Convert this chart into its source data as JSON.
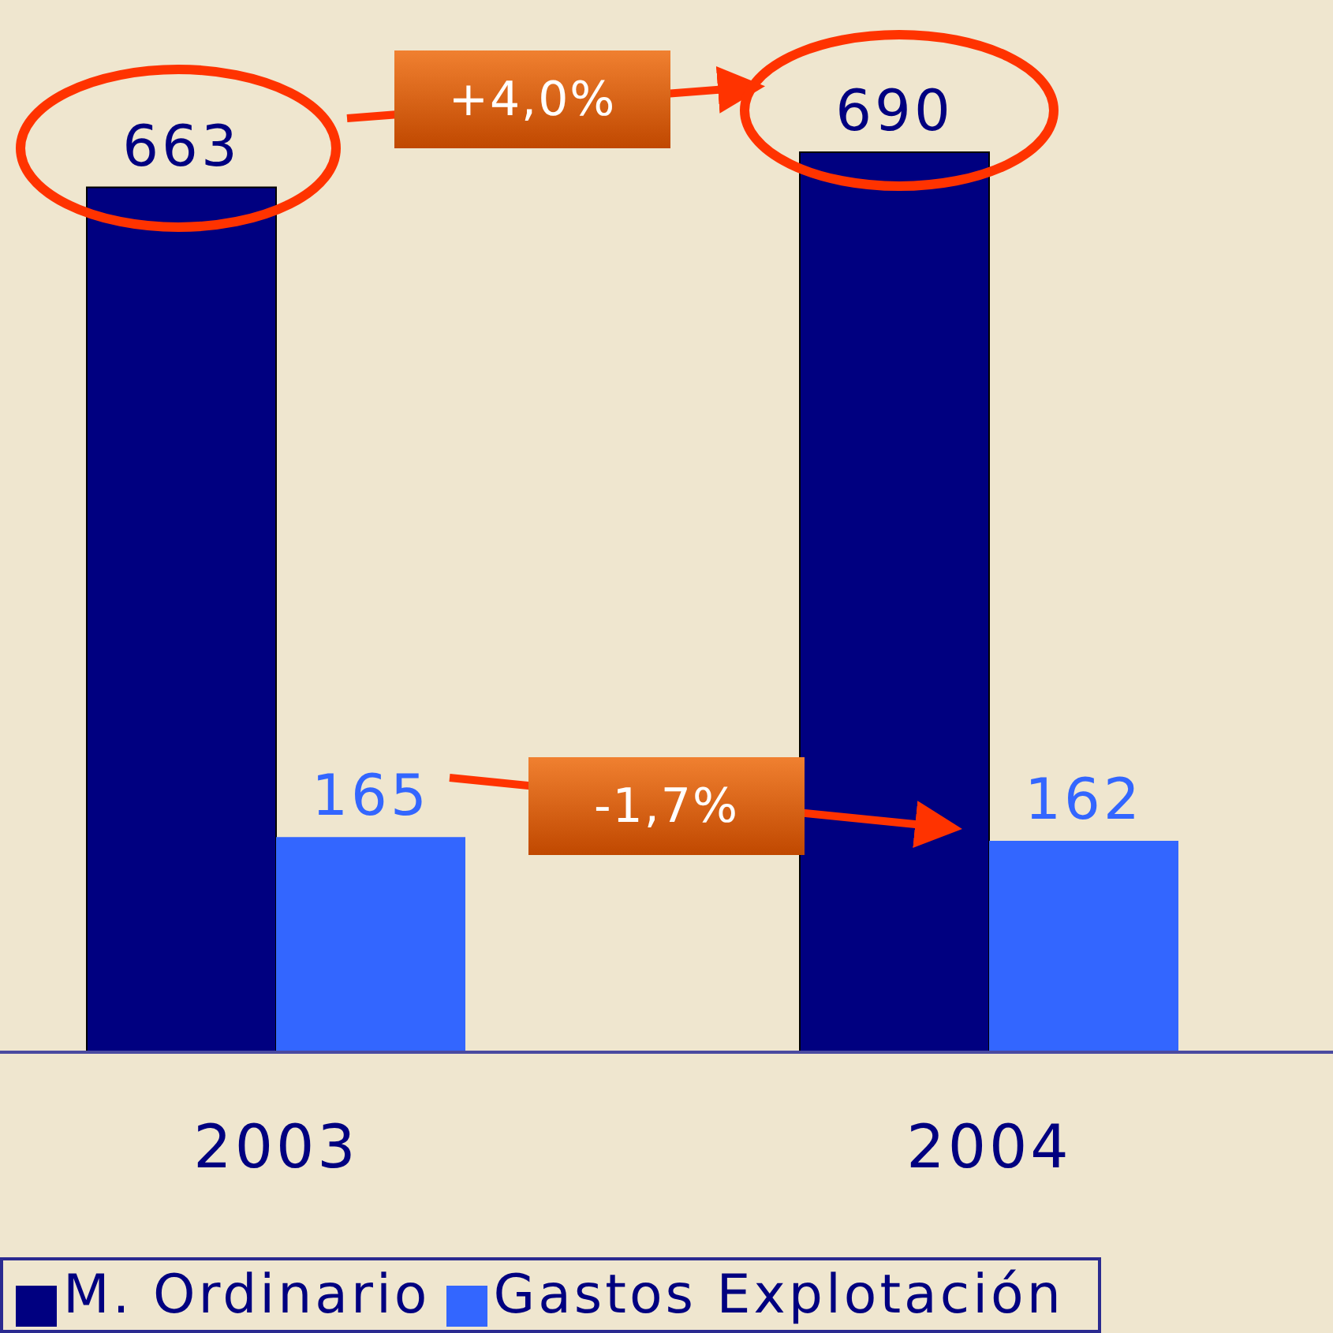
{
  "chart_data": {
    "type": "bar",
    "categories": [
      "2003",
      "2004"
    ],
    "series": [
      {
        "name": "M. Ordinario",
        "color": "#000080",
        "values": [
          663,
          690
        ]
      },
      {
        "name": "Gastos Explotación",
        "color": "#3366ff",
        "values": [
          165,
          162
        ]
      }
    ],
    "data_labels": true,
    "legend": "bottom",
    "annotations": [
      "+4,0%",
      "-1,7%"
    ]
  }
}
